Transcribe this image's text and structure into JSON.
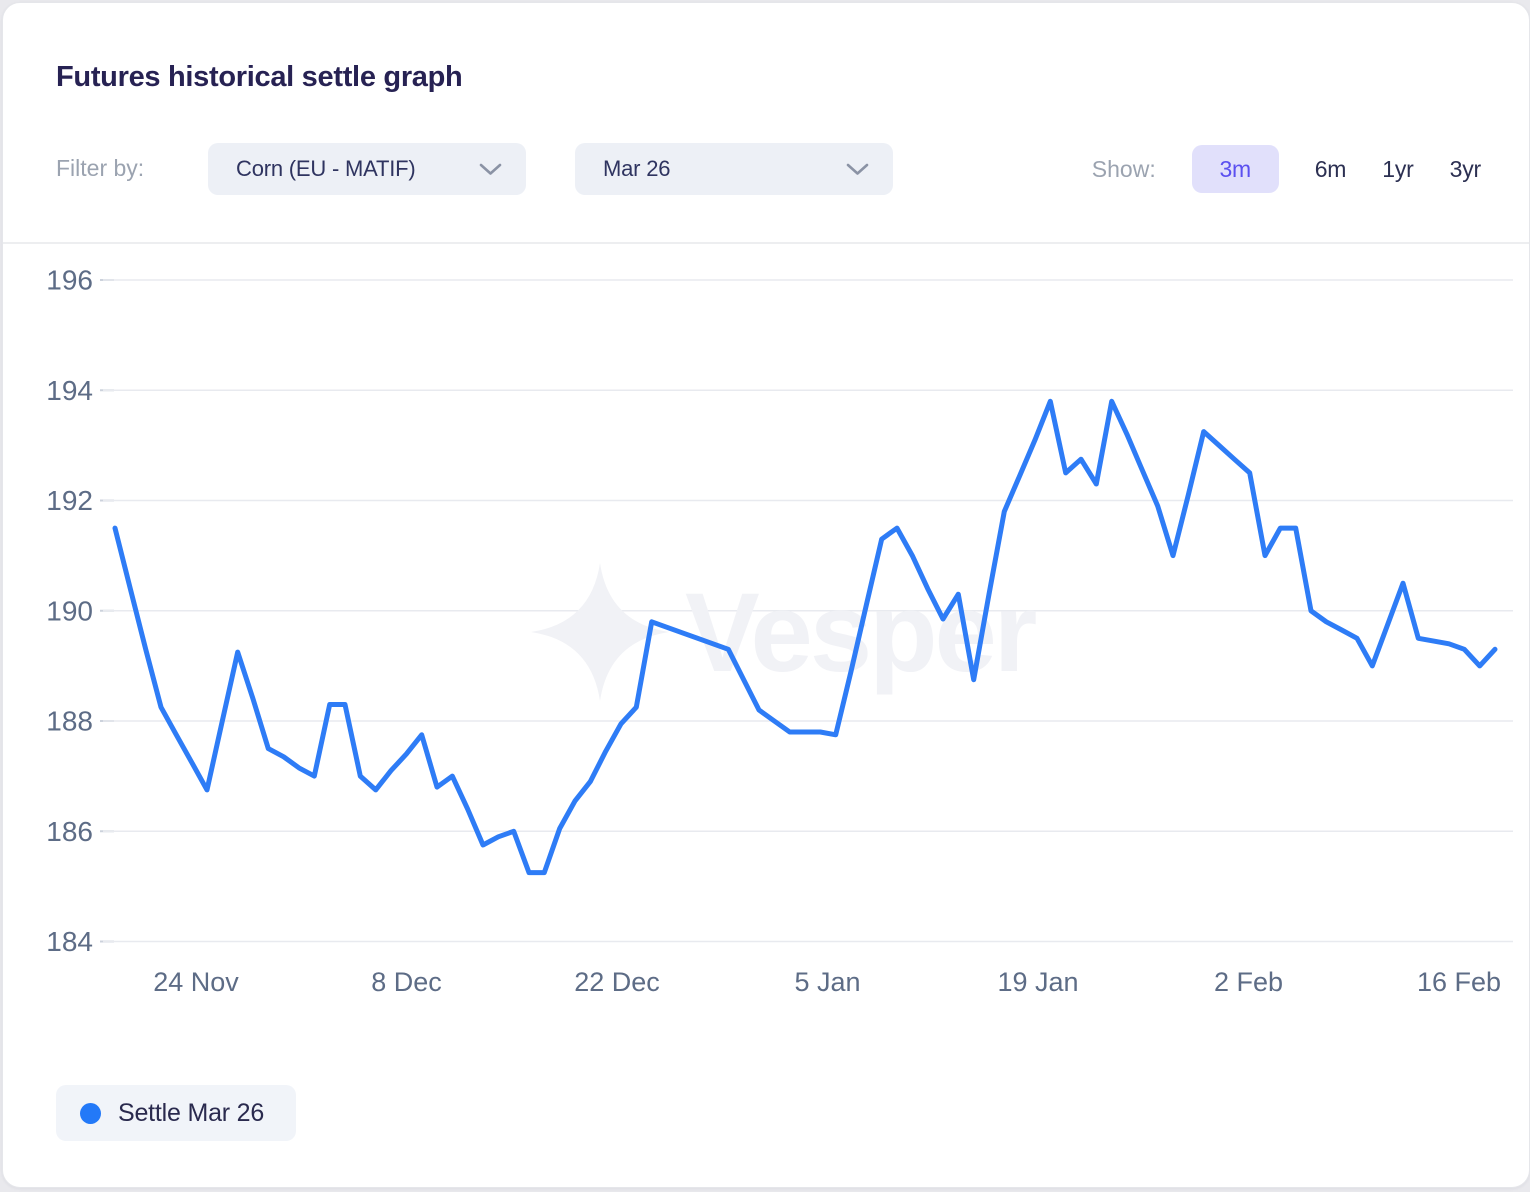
{
  "header": {
    "title": "Futures historical settle graph"
  },
  "filters": {
    "label": "Filter by:",
    "product": "Corn (EU - MATIF)",
    "contract": "Mar 26"
  },
  "show": {
    "label": "Show:",
    "options": [
      "3m",
      "6m",
      "1yr",
      "3yr"
    ],
    "selected": "3m"
  },
  "legend": {
    "label": "Settle Mar 26"
  },
  "watermark": {
    "text": "Vesper",
    "icon": "sparkle-star-icon"
  },
  "colors": {
    "line_blue": "#2e7cf6",
    "selected_pill_bg": "#e1e0fb",
    "selected_pill_text": "#5b50f0",
    "axis_text": "#5d6c86",
    "gridline": "#e8eaef"
  },
  "chart_data": {
    "type": "line",
    "title": "Futures historical settle graph",
    "xlabel": "",
    "ylabel": "",
    "ylim": [
      184,
      196
    ],
    "yticks": [
      196,
      194,
      192,
      190,
      188,
      186,
      184
    ],
    "xtick_labels": [
      "24 Nov",
      "8 Dec",
      "22 Dec",
      "5 Jan",
      "19 Jan",
      "2 Feb",
      "16 Feb"
    ],
    "grid": "horizontal",
    "legend_position": "bottom-left",
    "x": [
      "19 Nov",
      "20 Nov",
      "21 Nov",
      "22 Nov",
      "23 Nov",
      "24 Nov",
      "25 Nov",
      "26 Nov",
      "27 Nov",
      "28 Nov",
      "29 Nov",
      "30 Nov",
      "1 Dec",
      "2 Dec",
      "3 Dec",
      "4 Dec",
      "5 Dec",
      "6 Dec",
      "7 Dec",
      "8 Dec",
      "9 Dec",
      "10 Dec",
      "11 Dec",
      "12 Dec",
      "13 Dec",
      "14 Dec",
      "15 Dec",
      "16 Dec",
      "17 Dec",
      "18 Dec",
      "19 Dec",
      "20 Dec",
      "21 Dec",
      "22 Dec",
      "23 Dec",
      "24 Dec",
      "25 Dec",
      "26 Dec",
      "27 Dec",
      "28 Dec",
      "29 Dec",
      "30 Dec",
      "31 Dec",
      "1 Jan",
      "2 Jan",
      "3 Jan",
      "4 Jan",
      "5 Jan",
      "6 Jan",
      "7 Jan",
      "8 Jan",
      "9 Jan",
      "10 Jan",
      "11 Jan",
      "12 Jan",
      "13 Jan",
      "14 Jan",
      "15 Jan",
      "16 Jan",
      "17 Jan",
      "18 Jan",
      "19 Jan",
      "20 Jan",
      "21 Jan",
      "22 Jan",
      "23 Jan",
      "24 Jan",
      "25 Jan",
      "26 Jan",
      "27 Jan",
      "28 Jan",
      "29 Jan",
      "30 Jan",
      "31 Jan",
      "1 Feb",
      "2 Feb",
      "3 Feb",
      "4 Feb",
      "5 Feb",
      "6 Feb",
      "7 Feb",
      "8 Feb",
      "9 Feb",
      "10 Feb",
      "11 Feb",
      "12 Feb",
      "13 Feb",
      "14 Feb",
      "15 Feb",
      "16 Feb",
      "17 Feb"
    ],
    "series": [
      {
        "name": "Settle Mar 26",
        "color": "#2e7cf6",
        "values": [
          191.5,
          190.4,
          189.3,
          188.25,
          187.75,
          187.25,
          186.75,
          188.0,
          189.25,
          188.4,
          187.5,
          187.35,
          187.15,
          187.0,
          188.3,
          188.3,
          187.0,
          186.75,
          187.1,
          187.4,
          187.75,
          186.8,
          187.0,
          186.4,
          185.75,
          185.9,
          186.0,
          185.25,
          185.25,
          186.05,
          186.55,
          186.9,
          187.45,
          187.95,
          188.25,
          189.8,
          189.7,
          189.6,
          189.5,
          189.4,
          189.3,
          188.75,
          188.2,
          188.0,
          187.8,
          187.8,
          187.8,
          187.75,
          188.9,
          190.1,
          191.3,
          191.5,
          191.0,
          190.4,
          189.85,
          190.3,
          188.75,
          190.3,
          191.8,
          192.45,
          193.1,
          193.8,
          192.5,
          192.75,
          192.3,
          193.8,
          193.2,
          192.55,
          191.9,
          191.0,
          192.1,
          193.25,
          193.0,
          192.75,
          192.5,
          191.0,
          191.5,
          191.5,
          190.0,
          189.8,
          189.65,
          189.5,
          189.0,
          189.75,
          190.5,
          189.5,
          189.45,
          189.4,
          189.3,
          189.0,
          189.3
        ]
      }
    ]
  }
}
